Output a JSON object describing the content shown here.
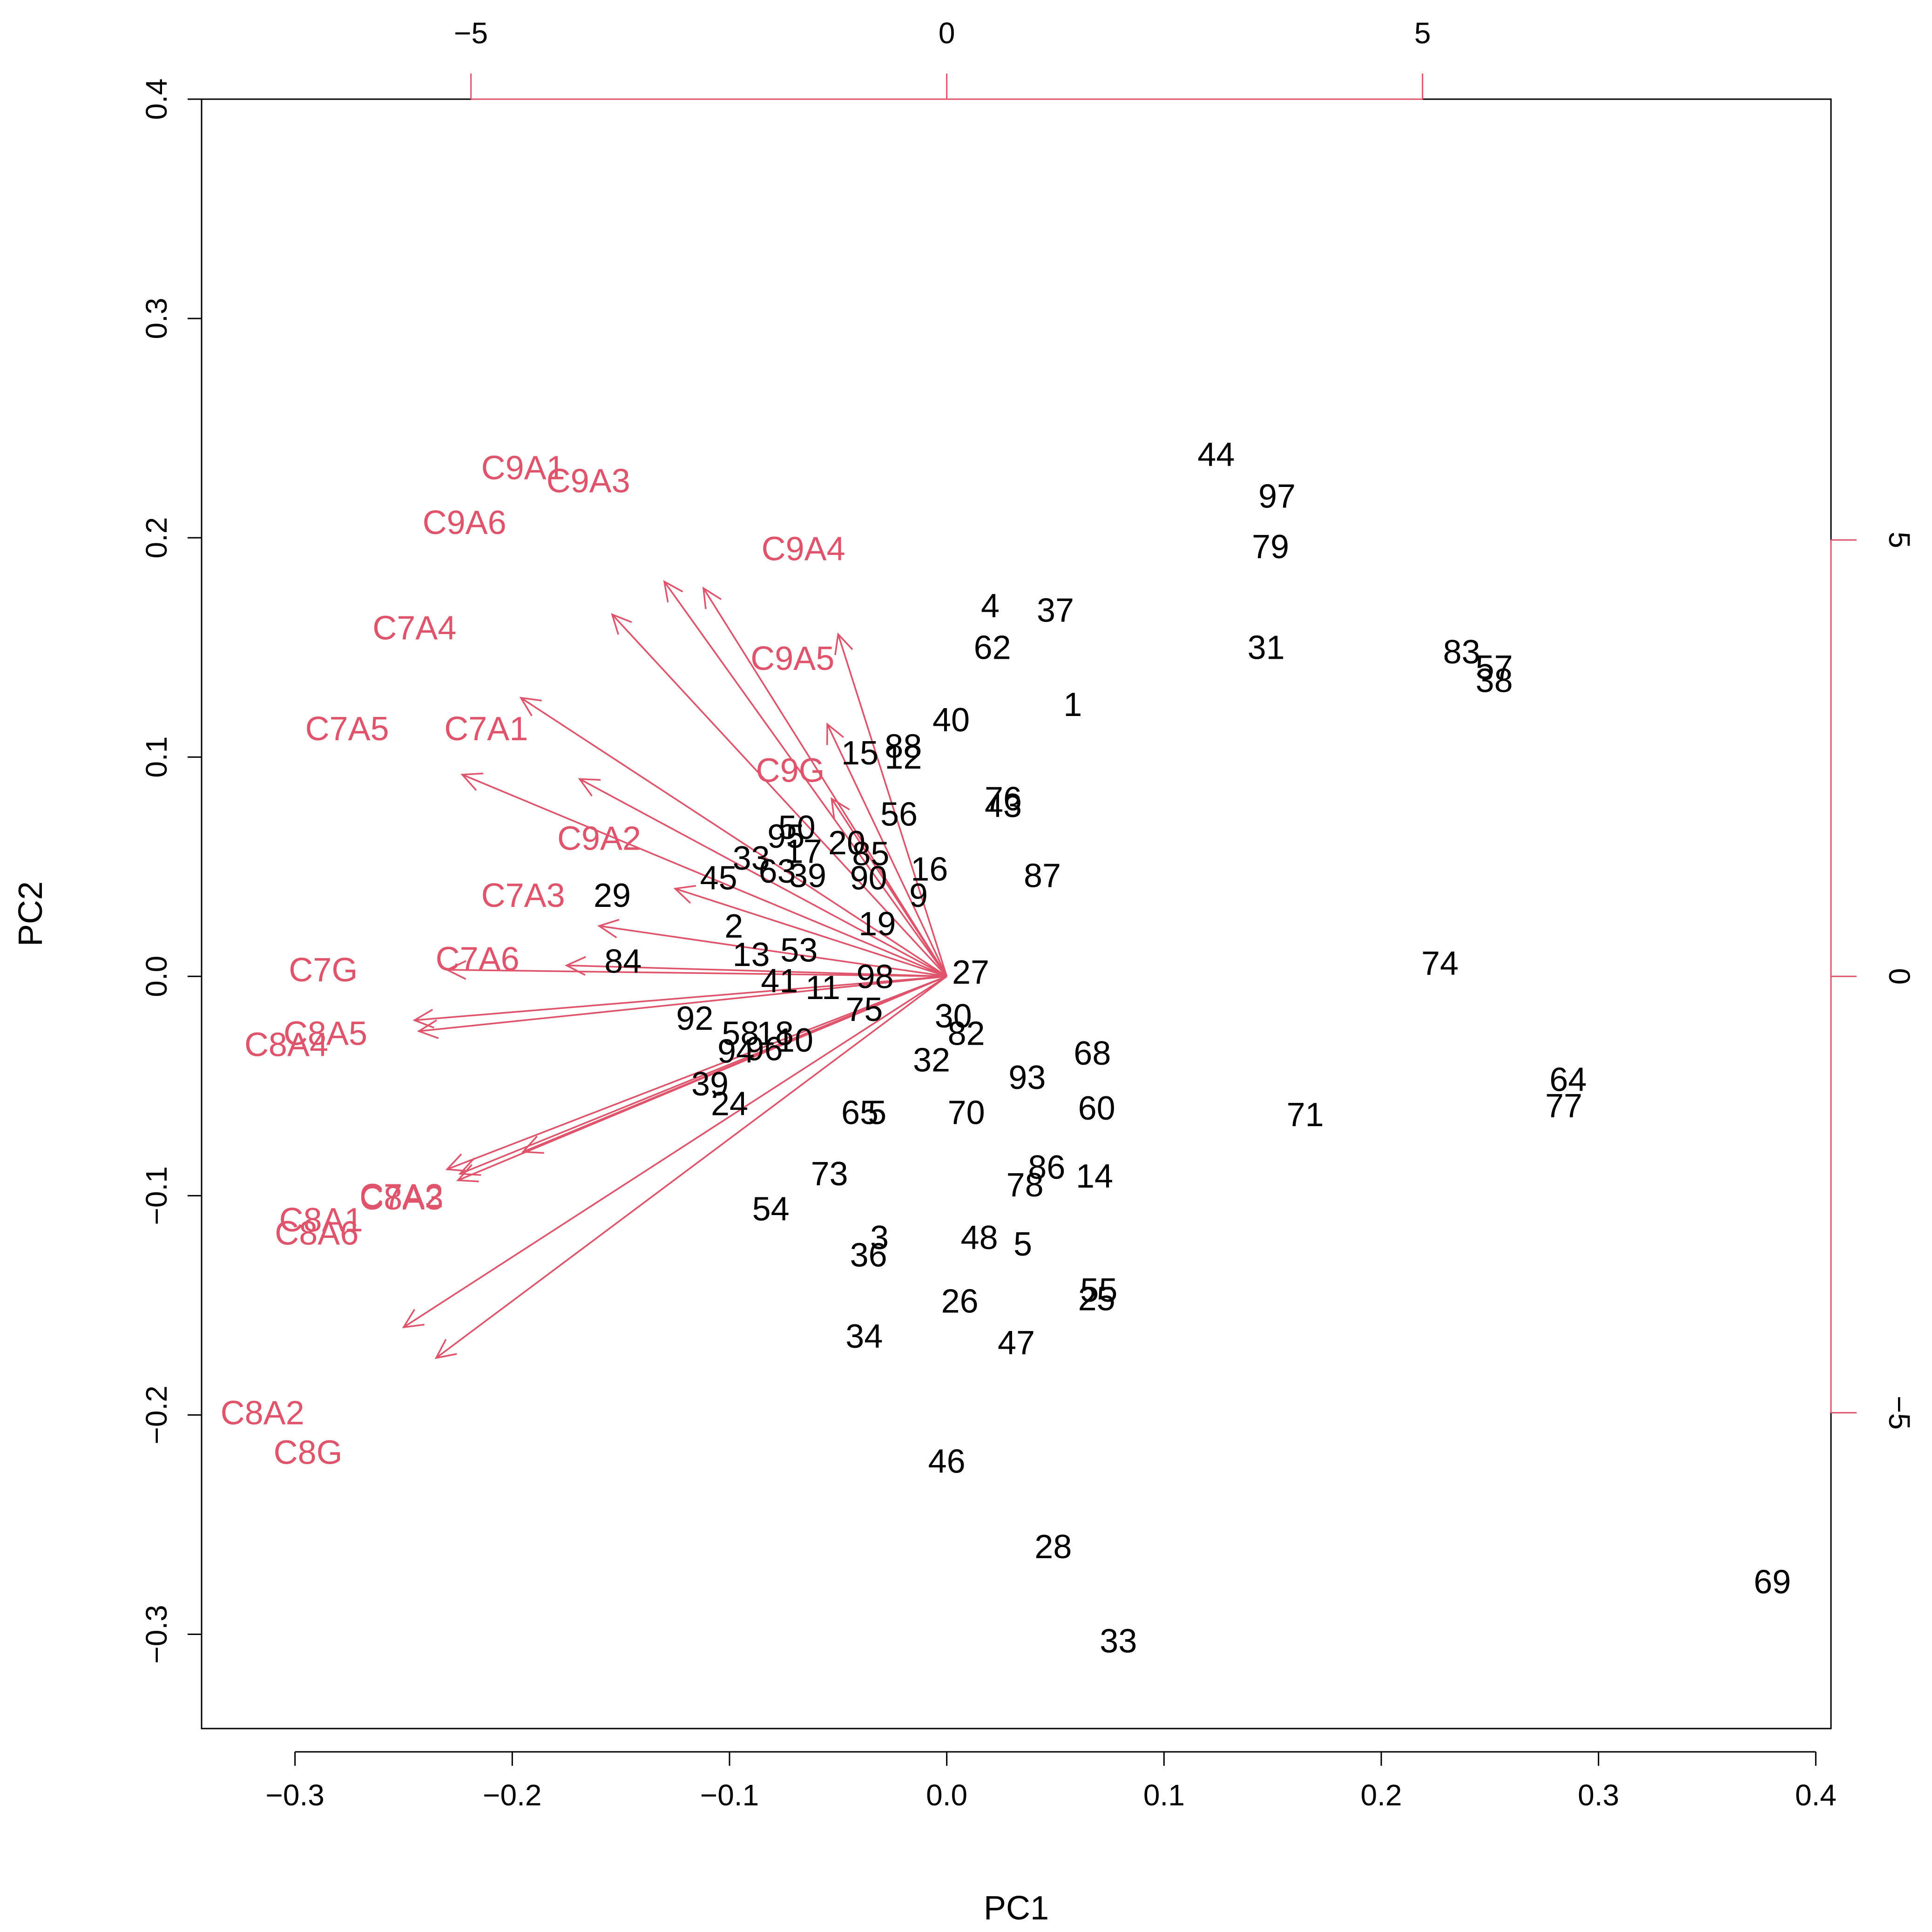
{
  "chart_data": {
    "type": "scatter",
    "subtype": "biplot",
    "title": "",
    "xlabel": "PC1",
    "ylabel": "PC2",
    "xlim": [
      -0.343,
      0.407
    ],
    "ylim": [
      -0.343,
      0.4
    ],
    "xticks": [
      -0.3,
      -0.2,
      -0.1,
      0.0,
      0.1,
      0.2,
      0.3,
      0.4
    ],
    "yticks": [
      -0.3,
      -0.2,
      -0.1,
      0.0,
      0.1,
      0.2,
      0.3,
      0.4
    ],
    "xtick_labels": [
      "-0.3",
      "-0.2",
      "-0.1",
      "0.0",
      "0.1",
      "0.2",
      "0.3",
      "0.4"
    ],
    "ytick_labels": [
      "-0.3",
      "-0.2",
      "-0.1",
      "0.0",
      "0.1",
      "0.2",
      "0.3",
      "0.4"
    ],
    "top_axis": {
      "ticks": [
        -5,
        0,
        5
      ],
      "labels": [
        "-5",
        "0",
        "5"
      ],
      "scale": 0.0438
    },
    "right_axis": {
      "ticks": [
        -5,
        0,
        5
      ],
      "labels": [
        "-5",
        "0",
        "5"
      ],
      "scale": 0.0398
    },
    "colors": {
      "points": "#000000",
      "vectors": "#DF536B",
      "axis": "#000000",
      "secondary_axis": "#DF536B"
    },
    "observations": [
      {
        "label": "44",
        "x": 0.124,
        "y": 0.238
      },
      {
        "label": "97",
        "x": 0.152,
        "y": 0.219
      },
      {
        "label": "79",
        "x": 0.149,
        "y": 0.196
      },
      {
        "label": "4",
        "x": 0.02,
        "y": 0.169
      },
      {
        "label": "37",
        "x": 0.05,
        "y": 0.167
      },
      {
        "label": "62",
        "x": 0.021,
        "y": 0.15
      },
      {
        "label": "31",
        "x": 0.147,
        "y": 0.15
      },
      {
        "label": "83",
        "x": 0.237,
        "y": 0.148
      },
      {
        "label": "57",
        "x": 0.252,
        "y": 0.141
      },
      {
        "label": "38",
        "x": 0.252,
        "y": 0.135
      },
      {
        "label": "1",
        "x": 0.058,
        "y": 0.124
      },
      {
        "label": "40",
        "x": 0.002,
        "y": 0.117
      },
      {
        "label": "15",
        "x": -0.04,
        "y": 0.102
      },
      {
        "label": "88",
        "x": -0.02,
        "y": 0.105
      },
      {
        "label": "12",
        "x": -0.02,
        "y": 0.1
      },
      {
        "label": "76",
        "x": 0.026,
        "y": 0.081
      },
      {
        "label": "43",
        "x": 0.026,
        "y": 0.078
      },
      {
        "label": "56",
        "x": -0.022,
        "y": 0.074
      },
      {
        "label": "50",
        "x": -0.069,
        "y": 0.068
      },
      {
        "label": "95",
        "x": -0.074,
        "y": 0.064
      },
      {
        "label": "20",
        "x": -0.046,
        "y": 0.061
      },
      {
        "label": "87",
        "x": 0.044,
        "y": 0.046
      },
      {
        "label": "16",
        "x": -0.008,
        "y": 0.049
      },
      {
        "label": "17",
        "x": -0.066,
        "y": 0.057
      },
      {
        "label": "33",
        "x": -0.09,
        "y": 0.054
      },
      {
        "label": "85",
        "x": -0.035,
        "y": 0.056
      },
      {
        "label": "63",
        "x": -0.078,
        "y": 0.048
      },
      {
        "label": "39",
        "x": -0.064,
        "y": 0.046
      },
      {
        "label": "90",
        "x": -0.036,
        "y": 0.045
      },
      {
        "label": "45",
        "x": -0.105,
        "y": 0.045
      },
      {
        "label": "29",
        "x": -0.154,
        "y": 0.037
      },
      {
        "label": "9",
        "x": -0.013,
        "y": 0.037
      },
      {
        "label": "2",
        "x": -0.098,
        "y": 0.023
      },
      {
        "label": "19",
        "x": -0.032,
        "y": 0.024
      },
      {
        "label": "84",
        "x": -0.149,
        "y": 0.007
      },
      {
        "label": "13",
        "x": -0.09,
        "y": 0.01
      },
      {
        "label": "53",
        "x": -0.068,
        "y": 0.012
      },
      {
        "label": "27",
        "x": 0.011,
        "y": 0.002
      },
      {
        "label": "74",
        "x": 0.227,
        "y": 0.006
      },
      {
        "label": "41",
        "x": -0.077,
        "y": -0.002
      },
      {
        "label": "11",
        "x": -0.057,
        "y": -0.005
      },
      {
        "label": "98",
        "x": -0.033,
        "y": 0.0
      },
      {
        "label": "75",
        "x": -0.038,
        "y": -0.015
      },
      {
        "label": "92",
        "x": -0.116,
        "y": -0.019
      },
      {
        "label": "30",
        "x": 0.003,
        "y": -0.018
      },
      {
        "label": "58",
        "x": -0.095,
        "y": -0.026
      },
      {
        "label": "18",
        "x": -0.079,
        "y": -0.026
      },
      {
        "label": "82",
        "x": 0.009,
        "y": -0.026
      },
      {
        "label": "10",
        "x": -0.07,
        "y": -0.029
      },
      {
        "label": "68",
        "x": 0.067,
        "y": -0.035
      },
      {
        "label": "32",
        "x": -0.007,
        "y": -0.038
      },
      {
        "label": "94",
        "x": -0.097,
        "y": -0.034
      },
      {
        "label": "96",
        "x": -0.084,
        "y": -0.033
      },
      {
        "label": "93",
        "x": 0.037,
        "y": -0.046
      },
      {
        "label": "39b",
        "x": -0.109,
        "y": -0.049
      },
      {
        "label": "24",
        "x": -0.1,
        "y": -0.058
      },
      {
        "label": "64",
        "x": 0.286,
        "y": -0.047
      },
      {
        "label": "77",
        "x": 0.284,
        "y": -0.059
      },
      {
        "label": "71",
        "x": 0.165,
        "y": -0.063
      },
      {
        "label": "60",
        "x": 0.069,
        "y": -0.06
      },
      {
        "label": "70",
        "x": 0.009,
        "y": -0.062
      },
      {
        "label": "65",
        "x": -0.04,
        "y": -0.062
      },
      {
        "label": "5b",
        "x": -0.032,
        "y": -0.062
      },
      {
        "label": "73",
        "x": -0.054,
        "y": -0.09
      },
      {
        "label": "86",
        "x": 0.046,
        "y": -0.087
      },
      {
        "label": "14",
        "x": 0.068,
        "y": -0.091
      },
      {
        "label": "78",
        "x": 0.036,
        "y": -0.095
      },
      {
        "label": "54",
        "x": -0.081,
        "y": -0.106
      },
      {
        "label": "48",
        "x": 0.015,
        "y": -0.119
      },
      {
        "label": "5",
        "x": 0.035,
        "y": -0.122
      },
      {
        "label": "3",
        "x": -0.031,
        "y": -0.119
      },
      {
        "label": "36",
        "x": -0.036,
        "y": -0.127
      },
      {
        "label": "55",
        "x": 0.07,
        "y": -0.143
      },
      {
        "label": "25",
        "x": 0.069,
        "y": -0.147
      },
      {
        "label": "26",
        "x": 0.006,
        "y": -0.148
      },
      {
        "label": "34",
        "x": -0.038,
        "y": -0.164
      },
      {
        "label": "47",
        "x": 0.032,
        "y": -0.167
      },
      {
        "label": "46",
        "x": 0.0,
        "y": -0.221
      },
      {
        "label": "28",
        "x": 0.049,
        "y": -0.26
      },
      {
        "label": "69",
        "x": 0.38,
        "y": -0.276
      },
      {
        "label": "33b",
        "x": 0.079,
        "y": -0.303
      }
    ],
    "observation_display": {
      "39b": "39",
      "5b": "5",
      "33b": "33"
    },
    "variables": [
      {
        "name": "C9A1",
        "x": -0.13,
        "y": 0.18,
        "label_x": -0.195,
        "label_y": 0.232
      },
      {
        "name": "C9A3",
        "x": -0.112,
        "y": 0.177,
        "label_x": -0.165,
        "label_y": 0.226
      },
      {
        "name": "C9A6",
        "x": -0.154,
        "y": 0.165,
        "label_x": -0.222,
        "label_y": 0.207
      },
      {
        "name": "C9A4",
        "x": -0.05,
        "y": 0.156,
        "label_x": -0.066,
        "label_y": 0.195
      },
      {
        "name": "C7A4",
        "x": -0.196,
        "y": 0.127,
        "label_x": -0.245,
        "label_y": 0.159
      },
      {
        "name": "C9A5",
        "x": -0.055,
        "y": 0.115,
        "label_x": -0.071,
        "label_y": 0.145
      },
      {
        "name": "C7A5",
        "x": -0.223,
        "y": 0.092,
        "label_x": -0.276,
        "label_y": 0.113
      },
      {
        "name": "C7A1",
        "x": -0.169,
        "y": 0.09,
        "label_x": -0.212,
        "label_y": 0.113
      },
      {
        "name": "C9G",
        "x": -0.053,
        "y": 0.081,
        "label_x": -0.072,
        "label_y": 0.094
      },
      {
        "name": "C9A2",
        "x": -0.125,
        "y": 0.04,
        "label_x": -0.16,
        "label_y": 0.063
      },
      {
        "name": "C7A3",
        "x": -0.16,
        "y": 0.023,
        "label_x": -0.195,
        "label_y": 0.037
      },
      {
        "name": "C7G",
        "x": -0.23,
        "y": 0.003,
        "label_x": -0.287,
        "label_y": 0.003
      },
      {
        "name": "C7A6",
        "x": -0.175,
        "y": 0.005,
        "label_x": -0.216,
        "label_y": 0.008
      },
      {
        "name": "C8A5",
        "x": -0.245,
        "y": -0.02,
        "label_x": -0.286,
        "label_y": -0.026
      },
      {
        "name": "C8A4",
        "x": -0.243,
        "y": -0.025,
        "label_x": -0.304,
        "label_y": -0.031
      },
      {
        "name": "C7A2",
        "x": -0.195,
        "y": -0.08,
        "label_x": -0.251,
        "label_y": -0.1
      },
      {
        "name": "C8A3",
        "x": -0.23,
        "y": -0.088,
        "label_x": -0.251,
        "label_y": -0.101
      },
      {
        "name": "C8A1",
        "x": -0.224,
        "y": -0.09,
        "label_x": -0.288,
        "label_y": -0.111
      },
      {
        "name": "C8A6",
        "x": -0.225,
        "y": -0.093,
        "label_x": -0.29,
        "label_y": -0.117
      },
      {
        "name": "C8A2",
        "x": -0.25,
        "y": -0.16,
        "label_x": -0.315,
        "label_y": -0.199
      },
      {
        "name": "C8G",
        "x": -0.235,
        "y": -0.174,
        "label_x": -0.294,
        "label_y": -0.217
      }
    ]
  }
}
